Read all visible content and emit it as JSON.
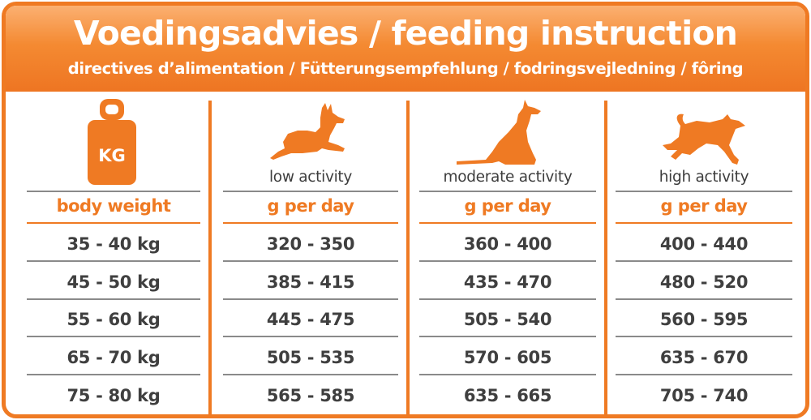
{
  "header": {
    "title": "Voedingsadvies / feeding instruction",
    "subtitle": "directives d’alimentation / Fütterungsempfehlung / fodringsvejledning / fôring"
  },
  "weight_icon_label": "KG",
  "columns": [
    {
      "icon": "weight-kg-icon",
      "activity": "",
      "header": "body weight",
      "rows": [
        "35 - 40 kg",
        "45 - 50 kg",
        "55 - 60 kg",
        "65 - 70 kg",
        "75 - 80 kg"
      ]
    },
    {
      "icon": "lying-dog-icon",
      "activity": "low activity",
      "header": "g per day",
      "rows": [
        "320 - 350",
        "385 - 415",
        "445 - 475",
        "505 - 535",
        "565 - 585"
      ]
    },
    {
      "icon": "sitting-dog-icon",
      "activity": "moderate activity",
      "header": "g per day",
      "rows": [
        "360 - 400",
        "435 - 470",
        "505 - 540",
        "570 - 605",
        "635 - 665"
      ]
    },
    {
      "icon": "running-dog-icon",
      "activity": "high activity",
      "header": "g per day",
      "rows": [
        "400 - 440",
        "480 - 520",
        "560 - 595",
        "635 - 670",
        "705 - 740"
      ]
    }
  ],
  "colors": {
    "accent": "#ef7a23",
    "text": "#3f3f3f",
    "rule": "#8a8a8a"
  }
}
